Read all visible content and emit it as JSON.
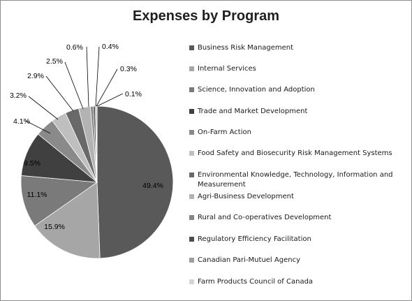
{
  "chart_data": {
    "type": "pie",
    "title": "Expenses by Program",
    "start_angle_deg": 0,
    "direction": "clockwise",
    "legend_position": "right",
    "slices": [
      {
        "label": "Business Risk Management",
        "value": 49.4,
        "value_label": "49.4%",
        "color": "#595959"
      },
      {
        "label": "Internal Services",
        "value": 15.9,
        "value_label": "15.9%",
        "color": "#a6a6a6"
      },
      {
        "label": "Science, Innovation and Adoption",
        "value": 11.1,
        "value_label": "11.1%",
        "color": "#7a7a7a"
      },
      {
        "label": "Trade and Market Development",
        "value": 9.5,
        "value_label": "9.5%",
        "color": "#404040"
      },
      {
        "label": "On-Farm Action",
        "value": 4.1,
        "value_label": "4.1%",
        "color": "#8a8a8a"
      },
      {
        "label": "Food Safety and Biosecurity Risk Management Systems",
        "value": 3.2,
        "value_label": "3.2%",
        "color": "#bfbfbf"
      },
      {
        "label": "Environmental Knowledge, Technology, Information and Measurement",
        "value": 2.9,
        "value_label": "2.9%",
        "color": "#696969"
      },
      {
        "label": "Agri-Business Development",
        "value": 2.5,
        "value_label": "2.5%",
        "color": "#b3b3b3"
      },
      {
        "label": "Rural and Co-operatives Development",
        "value": 0.6,
        "value_label": "0.6%",
        "color": "#858585"
      },
      {
        "label": "Regulatory Efficiency Facilitation",
        "value": 0.4,
        "value_label": "0.4%",
        "color": "#4d4d4d"
      },
      {
        "label": "Canadian Pari-Mutuel Agency",
        "value": 0.3,
        "value_label": "0.3%",
        "color": "#9e9e9e"
      },
      {
        "label": "Farm Products Council of Canada",
        "value": 0.1,
        "value_label": "0.1%",
        "color": "#d4d4d4"
      }
    ]
  }
}
